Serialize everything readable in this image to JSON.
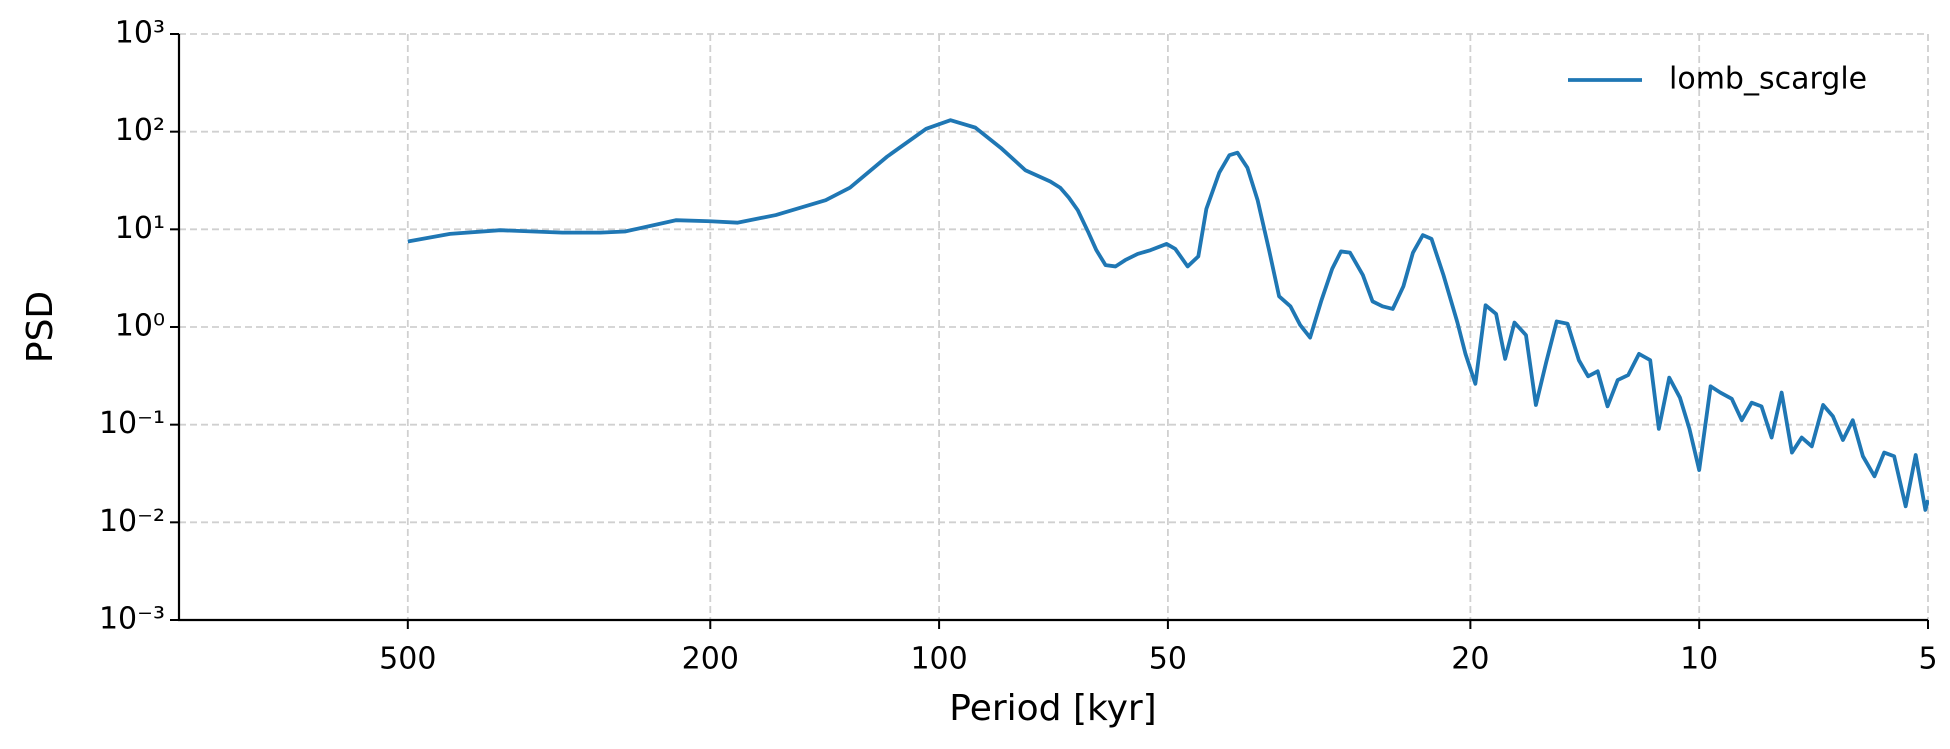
{
  "chart_data": {
    "type": "line",
    "xlabel": "Period [kyr]",
    "ylabel": "PSD",
    "xscale": "log",
    "yscale": "log",
    "x_reversed": true,
    "grid": true,
    "legend": "upper right",
    "xlim": [
      1000,
      5
    ],
    "ylim": [
      0.001,
      1000
    ],
    "xticks": [
      500,
      200,
      100,
      50,
      20,
      10,
      5
    ],
    "yticks": [
      {
        "value": 1000,
        "label": "10³"
      },
      {
        "value": 100,
        "label": "10²"
      },
      {
        "value": 10,
        "label": "10¹"
      },
      {
        "value": 1,
        "label": "10⁰"
      },
      {
        "value": 0.1,
        "label": "10⁻¹"
      },
      {
        "value": 0.01,
        "label": "10⁻²"
      },
      {
        "value": 0.001,
        "label": "10⁻³"
      }
    ],
    "x": [
      500,
      440,
      378,
      313,
      279,
      259,
      222,
      200,
      184,
      164,
      141,
      131,
      117,
      104,
      96.6,
      89.6,
      83.0,
      77.0,
      71.4,
      69.3,
      67.5,
      65.7,
      63.7,
      62.1,
      60.4,
      58.6,
      56.9,
      54.8,
      52.7,
      50.2,
      48.9,
      47.1,
      45.6,
      44.5,
      42.8,
      41.5,
      40.5,
      39.3,
      38.1,
      36.8,
      35.7,
      34.5,
      33.5,
      32.5,
      31.4,
      30.4,
      29.6,
      28.8,
      27.7,
      26.9,
      26.1,
      25.3,
      24.5,
      23.8,
      23.1,
      22.5,
      21.7,
      20.8,
      20.3,
      19.7,
      19.1,
      18.5,
      18.0,
      17.5,
      16.9,
      16.4,
      15.9,
      15.4,
      14.9,
      14.4,
      14.0,
      13.6,
      13.2,
      12.8,
      12.4,
      12.0,
      11.6,
      11.3,
      10.95,
      10.6,
      10.3,
      10.0,
      9.66,
      9.38,
      9.06,
      8.79,
      8.53,
      8.28,
      8.03,
      7.79,
      7.55,
      7.33,
      7.11,
      6.87,
      6.67,
      6.47,
      6.28,
      6.09,
      5.88,
      5.71,
      5.54,
      5.35,
      5.19,
      5.04,
      5.0
    ],
    "series": [
      {
        "name": "lomb_scargle",
        "color": "#1f77b4",
        "values": [
          7.5,
          8.98,
          9.8,
          9.25,
          9.25,
          9.5,
          12.4,
          12.1,
          11.7,
          14.0,
          19.9,
          26.7,
          55.7,
          107,
          131,
          110,
          68.5,
          40.3,
          30.9,
          26.7,
          21.1,
          15.7,
          9.5,
          6.12,
          4.3,
          4.17,
          4.84,
          5.6,
          6.12,
          7.09,
          6.31,
          4.17,
          5.28,
          16.2,
          38.0,
          57.4,
          60.9,
          42.8,
          19.9,
          6.12,
          2.06,
          1.63,
          1.05,
          0.779,
          1.88,
          3.94,
          5.94,
          5.77,
          3.4,
          1.83,
          1.63,
          1.53,
          2.61,
          5.77,
          8.72,
          7.98,
          3.4,
          1.11,
          0.531,
          0.262,
          1.67,
          1.36,
          0.472,
          1.11,
          0.826,
          0.159,
          0.432,
          1.14,
          1.08,
          0.458,
          0.313,
          0.352,
          0.154,
          0.286,
          0.322,
          0.531,
          0.458,
          0.0907,
          0.303,
          0.189,
          0.0907,
          0.0343,
          0.247,
          0.213,
          0.184,
          0.111,
          0.168,
          0.154,
          0.0738,
          0.213,
          0.0518,
          0.0738,
          0.06,
          0.159,
          0.122,
          0.0696,
          0.111,
          0.0475,
          0.0296,
          0.0518,
          0.0475,
          0.0146,
          0.0489,
          0.0134,
          0.0169
        ]
      }
    ]
  }
}
